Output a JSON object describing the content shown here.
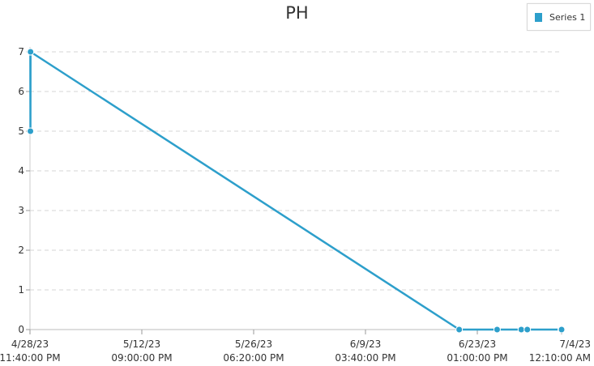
{
  "chart_data": {
    "type": "line",
    "title": "PH",
    "xlabel": "",
    "ylabel": "",
    "ylim": [
      0,
      7
    ],
    "y_ticks": [
      "0",
      "1",
      "2",
      "3",
      "4",
      "5",
      "6",
      "7"
    ],
    "x_range": [
      "2023-04-28T23:40:00",
      "2023-07-04T00:10:00"
    ],
    "x_ticks": [
      {
        "date": "2023-04-28T23:40:00",
        "line1": "4/28/23",
        "line2": "11:40:00 PM"
      },
      {
        "date": "2023-05-12T21:00:00",
        "line1": "5/12/23",
        "line2": "09:00:00 PM"
      },
      {
        "date": "2023-05-26T18:20:00",
        "line1": "5/26/23",
        "line2": "06:20:00 PM"
      },
      {
        "date": "2023-06-09T15:40:00",
        "line1": "6/9/23",
        "line2": "03:40:00 PM"
      },
      {
        "date": "2023-06-23T13:00:00",
        "line1": "6/23/23",
        "line2": "01:00:00 PM"
      },
      {
        "date": "2023-07-04T00:10:00",
        "line1": "7/4/23",
        "line2": "12:10:00 AM"
      }
    ],
    "grid": "horizontal-dashed",
    "legend_position": "top-right",
    "series": [
      {
        "name": "Series 1",
        "color": "#2d9fcb",
        "points": [
          {
            "x": "2023-04-28T23:40:00",
            "y": 7
          },
          {
            "x": "2023-04-29T00:40:00",
            "y": 7
          },
          {
            "x": "2023-04-29T01:00:00",
            "y": 5
          },
          {
            "x": "2023-04-29T01:20:00",
            "y": 7
          },
          {
            "x": "2023-06-21T07:00:00",
            "y": 0
          },
          {
            "x": "2023-06-26T00:00:00",
            "y": 0
          },
          {
            "x": "2023-06-29T00:00:00",
            "y": 0
          },
          {
            "x": "2023-06-29T18:00:00",
            "y": 0
          },
          {
            "x": "2023-07-03T23:00:00",
            "y": 0
          },
          {
            "x": "2023-07-04T00:10:00",
            "y": 0
          }
        ]
      }
    ]
  }
}
